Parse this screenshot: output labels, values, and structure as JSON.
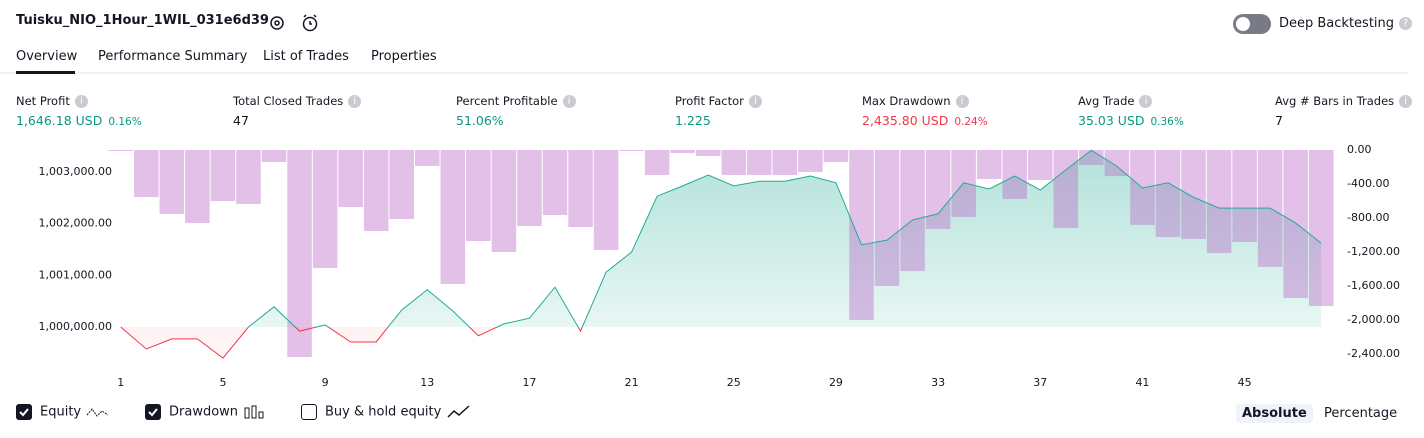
{
  "header": {
    "title": "Tuisku_NIO_1Hour_1WIL_031e6d39",
    "deep_backtesting": "Deep Backtesting"
  },
  "tabs": [
    "Overview",
    "Performance Summary",
    "List of Trades",
    "Properties"
  ],
  "metrics": [
    {
      "label": "Net Profit",
      "value": "1,646.18 USD",
      "percent": "0.16%"
    },
    {
      "label": "Total Closed Trades",
      "value": "47"
    },
    {
      "label": "Percent Profitable",
      "value": "51.06%"
    },
    {
      "label": "Profit Factor",
      "value": "1.225"
    },
    {
      "label": "Max Drawdown",
      "value": "2,435.80 USD",
      "percent": "0.24%"
    },
    {
      "label": "Avg Trade",
      "value": "35.03 USD",
      "percent": "0.36%"
    },
    {
      "label": "Avg # Bars in Trades",
      "value": "7"
    }
  ],
  "legend": {
    "buy_hold": "Buy & hold equity"
  },
  "toggle": [
    "Absolute",
    "Percentage"
  ],
  "chart_data": {
    "type": "line",
    "x": [
      1,
      2,
      3,
      4,
      5,
      6,
      7,
      8,
      9,
      10,
      11,
      12,
      13,
      14,
      15,
      16,
      17,
      18,
      19,
      20,
      21,
      22,
      23,
      24,
      25,
      26,
      27,
      28,
      29,
      30,
      31,
      32,
      33,
      34,
      35,
      36,
      37,
      38,
      39,
      40,
      41,
      42,
      43,
      44,
      45,
      46,
      47,
      48
    ],
    "xlim": [
      0.5,
      48.5
    ],
    "xticks": [
      1,
      5,
      9,
      13,
      17,
      21,
      25,
      29,
      33,
      37,
      41,
      45
    ],
    "ylim": [
      999265,
      1003424
    ],
    "yticks": [
      {
        "value": 1000000,
        "label": "1,000,000.00"
      },
      {
        "value": 1001000,
        "label": "1,001,000.00"
      },
      {
        "value": 1002000,
        "label": "1,002,000.00"
      },
      {
        "value": 1003000,
        "label": "1,003,000.00"
      }
    ],
    "y2lim": [
      -2530,
      0
    ],
    "y2ticks": [
      {
        "value": 0,
        "label": "0.00"
      },
      {
        "value": -400,
        "label": "-400.00"
      },
      {
        "value": -800,
        "label": "-800.00"
      },
      {
        "value": -1200,
        "label": "-1,200.00"
      },
      {
        "value": -1600,
        "label": "-1,600.00"
      },
      {
        "value": -2000,
        "label": "-2,000.00"
      },
      {
        "value": -2400,
        "label": "-2,400.00"
      }
    ],
    "series": [
      {
        "name": "Equity",
        "color": "#22ab94",
        "negative_color": "#f23645",
        "values": [
          1000000,
          999575,
          999770,
          999770,
          999400,
          1000000,
          1000390,
          999920,
          1000040,
          999710,
          999710,
          1000330,
          1000720,
          1000310,
          999830,
          1000060,
          1000170,
          1000770,
          999920,
          1001060,
          1001450,
          1002530,
          1002730,
          1002940,
          1002730,
          1002820,
          1002820,
          1002920,
          1002790,
          1001590,
          1001680,
          1002070,
          1002190,
          1002790,
          1002670,
          1002920,
          1002650,
          1003040,
          1003420,
          1003110,
          1002690,
          1002790,
          1002510,
          1002300,
          1002300,
          1002300,
          1002010,
          1001620
        ]
      },
      {
        "name": "Drawdown",
        "color": "#ba68c8",
        "axis": "y2",
        "values": [
          0,
          -553,
          -753,
          -859,
          -600,
          -635,
          -141,
          -2436,
          -1388,
          -671,
          -953,
          -812,
          -188,
          -1576,
          -1071,
          -1200,
          -894,
          -765,
          -906,
          -1176,
          0,
          -294,
          -35,
          -71,
          -294,
          -294,
          -294,
          -259,
          -141,
          -2000,
          -1600,
          -1424,
          -929,
          -788,
          -341,
          -576,
          -353,
          -918,
          -176,
          -306,
          -882,
          -1024,
          -1047,
          -1212,
          -1082,
          -1376,
          -1741,
          -1835
        ]
      }
    ]
  }
}
